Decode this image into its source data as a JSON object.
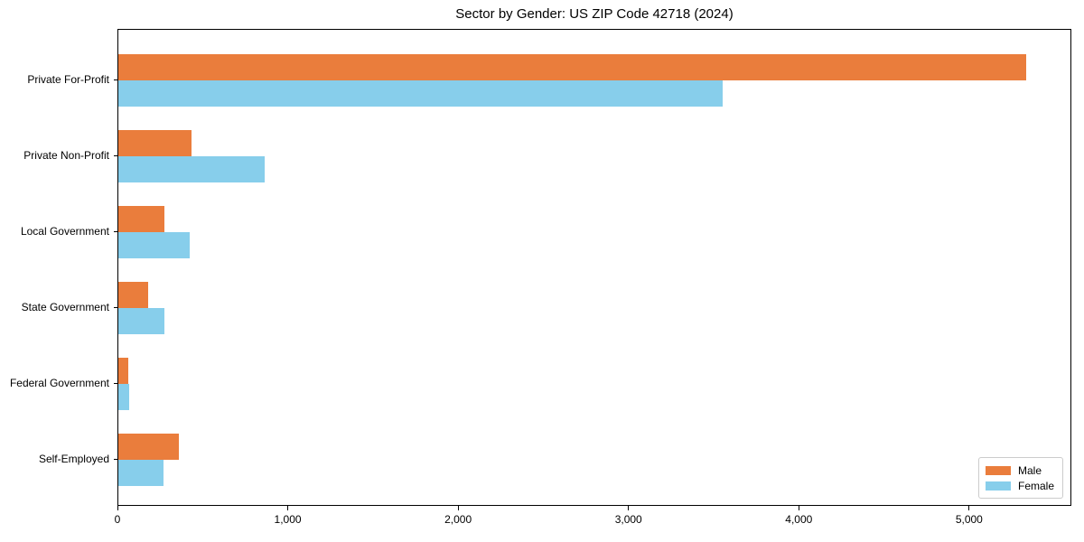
{
  "title": "Sector by Gender: US ZIP Code 42718 (2024)",
  "chart_data": {
    "type": "bar",
    "orientation": "horizontal",
    "title": "Sector by Gender: US ZIP Code 42718 (2024)",
    "xlabel": "",
    "ylabel": "",
    "categories": [
      "Private For-Profit",
      "Private Non-Profit",
      "Local Government",
      "State Government",
      "Federal Government",
      "Self-Employed"
    ],
    "series": [
      {
        "name": "Male",
        "color": "#EA7D3C",
        "values": [
          5330,
          430,
          270,
          175,
          60,
          355
        ]
      },
      {
        "name": "Female",
        "color": "#87CEEB",
        "values": [
          3550,
          860,
          420,
          270,
          65,
          265
        ]
      }
    ],
    "xlim": [
      0,
      5600
    ],
    "xticks": [
      0,
      1000,
      2000,
      3000,
      4000,
      5000
    ],
    "xtick_labels": [
      "0",
      "1,000",
      "2,000",
      "3,000",
      "4,000",
      "5,000"
    ],
    "grid": false,
    "legend_position": "lower right",
    "axis_color": "#000000",
    "background_color": "#ffffff"
  }
}
